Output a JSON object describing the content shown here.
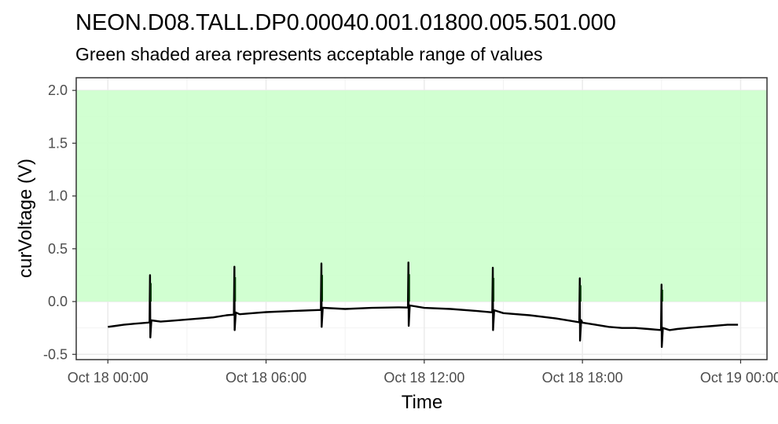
{
  "chart_data": {
    "type": "line",
    "title": "NEON.D08.TALL.DP0.00040.001.01800.005.501.000",
    "subtitle": "Green shaded area represents acceptable range of values",
    "xlabel": "Time",
    "ylabel": "curVoltage (V)",
    "x_ticks": [
      "Oct 18 00:00",
      "Oct 18 06:00",
      "Oct 18 12:00",
      "Oct 18 18:00",
      "Oct 19 00:00"
    ],
    "x_tick_hours": [
      0,
      6,
      12,
      18,
      24
    ],
    "xlim_hours": [
      -1.2,
      25.0
    ],
    "ylim": [
      -0.55,
      2.12
    ],
    "y_ticks": [
      -0.5,
      0.0,
      0.5,
      1.0,
      1.5,
      2.0
    ],
    "y_tick_labels": [
      "-0.5",
      "0.0",
      "0.5",
      "1.0",
      "1.5",
      "2.0"
    ],
    "acceptable_range": [
      0.0,
      2.0
    ],
    "colors": {
      "band": "#ccffcc",
      "line": "#000000",
      "spike": "#003300"
    },
    "series": [
      {
        "baseline_hours": [
          0,
          0.3,
          0.6,
          1.0,
          1.5,
          2.0,
          2.5,
          3.0,
          3.5,
          4.0,
          4.5,
          5.0,
          5.5,
          6.0,
          7.0,
          8.0,
          9.0,
          10.0,
          11.0,
          12.0,
          13.0,
          14.0,
          15.0,
          16.0,
          17.0,
          17.5,
          18.0,
          18.5,
          19.0,
          19.5,
          20.0,
          20.5,
          21.0,
          21.3,
          21.6,
          22.0,
          22.5,
          23.0,
          23.5,
          23.9
        ],
        "baseline_values": [
          -0.24,
          -0.23,
          -0.22,
          -0.21,
          -0.2,
          -0.19,
          -0.18,
          -0.17,
          -0.16,
          -0.15,
          -0.13,
          -0.12,
          -0.11,
          -0.1,
          -0.09,
          -0.08,
          -0.07,
          -0.06,
          -0.055,
          -0.06,
          -0.07,
          -0.09,
          -0.11,
          -0.13,
          -0.16,
          -0.18,
          -0.2,
          -0.22,
          -0.24,
          -0.25,
          -0.25,
          -0.26,
          -0.27,
          -0.27,
          -0.26,
          -0.25,
          -0.24,
          -0.23,
          -0.22,
          -0.22
        ],
        "spikes": [
          {
            "hour": 1.6,
            "high": 0.25,
            "low": -0.34
          },
          {
            "hour": 4.8,
            "high": 0.33,
            "low": -0.27
          },
          {
            "hour": 8.1,
            "high": 0.36,
            "low": -0.24
          },
          {
            "hour": 11.4,
            "high": 0.37,
            "low": -0.23
          },
          {
            "hour": 14.6,
            "high": 0.32,
            "low": -0.27
          },
          {
            "hour": 17.9,
            "high": 0.22,
            "low": -0.37
          },
          {
            "hour": 21.0,
            "high": 0.16,
            "low": -0.43
          }
        ]
      }
    ]
  }
}
